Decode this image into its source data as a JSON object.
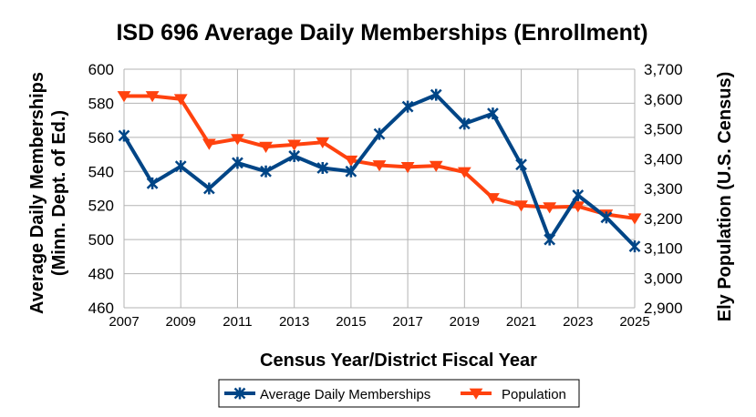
{
  "chart_data": {
    "type": "line",
    "title": "ISD 696 Average Daily Memberships (Enrollment)",
    "xlabel": "Census Year/District Fiscal Year",
    "ylabel_line1": "Average Daily Memberships",
    "ylabel_line2": "(Minn. Dept. of Ed.)",
    "y2label": "Ely Population (U.S. Census)",
    "x": [
      2007,
      2008,
      2009,
      2010,
      2011,
      2012,
      2013,
      2014,
      2015,
      2016,
      2017,
      2018,
      2019,
      2020,
      2021,
      2022,
      2023,
      2024,
      2025
    ],
    "x_tick_labels": [
      "2007",
      "2009",
      "2011",
      "2013",
      "2015",
      "2017",
      "2019",
      "2021",
      "2023",
      "2025"
    ],
    "ylim": [
      460,
      600
    ],
    "y_ticks": [
      "460",
      "480",
      "500",
      "520",
      "540",
      "560",
      "580",
      "600"
    ],
    "y2lim": [
      2900,
      3700
    ],
    "y2_ticks": [
      "2,900",
      "3,000",
      "3,100",
      "3,200",
      "3,300",
      "3,400",
      "3,500",
      "3,600",
      "3,700"
    ],
    "grid": true,
    "legend_position": "bottom",
    "series": [
      {
        "name": "Average Daily Memberships",
        "axis": "left",
        "color": "#004586",
        "marker": "star",
        "values": [
          561,
          533,
          543,
          530,
          545,
          540,
          549,
          542,
          540,
          562,
          578,
          585,
          568,
          574,
          544,
          500,
          526,
          513,
          496
        ]
      },
      {
        "name": "Population",
        "axis": "right",
        "color": "#ff420e",
        "marker": "triangle-down",
        "values": [
          3610,
          3610,
          3600,
          3450,
          3466,
          3440,
          3447,
          3455,
          3394,
          3378,
          3372,
          3376,
          3355,
          3268,
          3243,
          3237,
          3240,
          3213,
          3200
        ]
      }
    ]
  }
}
